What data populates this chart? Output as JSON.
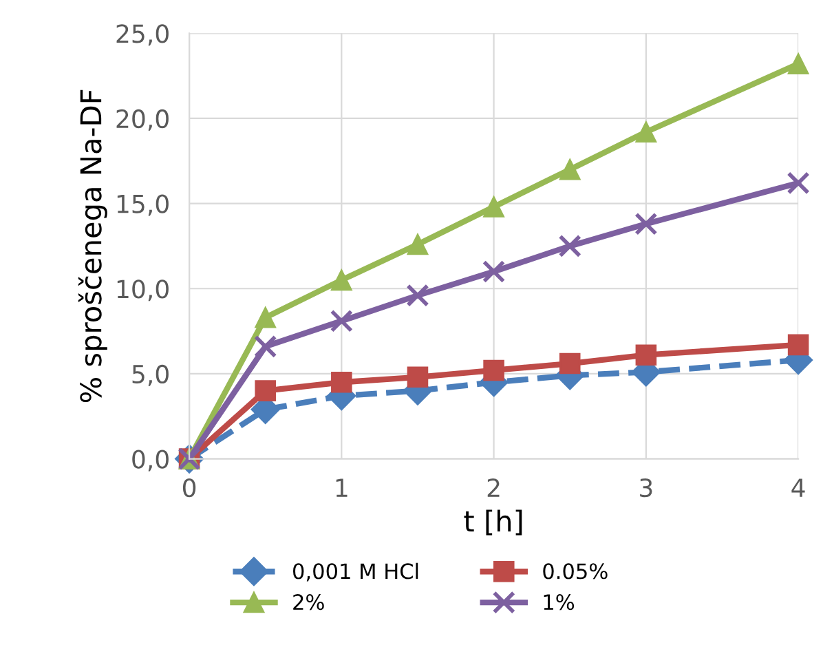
{
  "chart_data": {
    "type": "line",
    "xlabel": "t [h]",
    "ylabel": "% sproščenega Na-DF",
    "x": [
      0,
      0.5,
      1,
      1.5,
      2,
      2.5,
      3,
      4
    ],
    "series": [
      {
        "name": "0,001 M HCl",
        "color": "#4a7ebb",
        "marker": "diamond",
        "line_style": "dashed",
        "values": [
          0,
          2.9,
          3.7,
          4.0,
          4.5,
          4.9,
          5.1,
          5.8
        ]
      },
      {
        "name": "0.05%",
        "color": "#be4b48",
        "marker": "square",
        "line_style": "solid",
        "values": [
          0,
          4.0,
          4.5,
          4.8,
          5.2,
          5.6,
          6.1,
          6.7
        ]
      },
      {
        "name": "2%",
        "color": "#98b954",
        "marker": "triangle",
        "line_style": "solid",
        "values": [
          0,
          8.3,
          10.5,
          12.6,
          14.8,
          17.0,
          19.2,
          23.2
        ]
      },
      {
        "name": "1%",
        "color": "#7d60a0",
        "marker": "cross",
        "line_style": "solid",
        "values": [
          0,
          6.6,
          8.1,
          9.6,
          11.0,
          12.5,
          13.8,
          16.2
        ]
      }
    ],
    "xlim": [
      0,
      4
    ],
    "xticks": [
      0,
      1,
      2,
      3,
      4
    ],
    "ylim": [
      0,
      25
    ],
    "yticks": [
      {
        "value": 0,
        "label": "0,0"
      },
      {
        "value": 5,
        "label": "5,0"
      },
      {
        "value": 10,
        "label": "10,0"
      },
      {
        "value": 15,
        "label": "15,0"
      },
      {
        "value": 20,
        "label": "20,0"
      },
      {
        "value": 25,
        "label": "25,0"
      }
    ],
    "grid": true,
    "legend": "bottom"
  }
}
